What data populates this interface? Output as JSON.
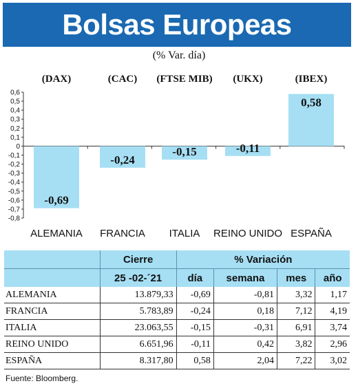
{
  "header": {
    "title": "Bolsas Europeas",
    "subtitle": "(% Var. día)"
  },
  "colors": {
    "banner": "#1a69b2",
    "bar": "#a6dff4",
    "table_header": "#a6dff4"
  },
  "chart_data": {
    "type": "bar",
    "indices": [
      "(DAX)",
      "(CAC)",
      "(FTSE MIB)",
      "(UKX)",
      "(IBEX)"
    ],
    "categories": [
      "ALEMANIA",
      "FRANCIA",
      "ITALIA",
      "REINO UNIDO",
      "ESPAÑA"
    ],
    "values": [
      -0.69,
      -0.24,
      -0.15,
      -0.11,
      0.58
    ],
    "value_labels": [
      "-0,69",
      "-0,24",
      "-0,15",
      "-0,11",
      "0,58"
    ],
    "ylim": [
      -0.8,
      0.6
    ],
    "yticks": [
      "0,6",
      "0,5",
      "0,4",
      "0,3",
      "0,2",
      "0,1",
      "0",
      "-0,1",
      "-0,2",
      "-0,3",
      "-0,4",
      "-0,5",
      "-0,6",
      "-0,7",
      "-0,8"
    ],
    "grid": false,
    "legend": "none"
  },
  "table": {
    "group_headers": {
      "cierre": "Cierre",
      "variacion": "% Variación"
    },
    "columns": [
      "25 -02-´21",
      "día",
      "semana",
      "mes",
      "año"
    ],
    "rows": [
      {
        "country": "ALEMANIA",
        "cierre": "13.879,33",
        "dia": "-0,69",
        "semana": "-0,81",
        "mes": "3,32",
        "ano": "1,17"
      },
      {
        "country": "FRANCIA",
        "cierre": "5.783,89",
        "dia": "-0,24",
        "semana": "0,18",
        "mes": "7,12",
        "ano": "4,19"
      },
      {
        "country": "ITALIA",
        "cierre": "23.063,55",
        "dia": "-0,15",
        "semana": "-0,31",
        "mes": "6,91",
        "ano": "3,74"
      },
      {
        "country": "REINO UNIDO",
        "cierre": "6.651,96",
        "dia": "-0,11",
        "semana": "0,42",
        "mes": "3,82",
        "ano": "2,96"
      },
      {
        "country": "ESPAÑA",
        "cierre": "8.317,80",
        "dia": "0,58",
        "semana": "2,04",
        "mes": "7,22",
        "ano": "3,02"
      }
    ]
  },
  "footer": {
    "source": "Fuente: Bloomberg."
  }
}
